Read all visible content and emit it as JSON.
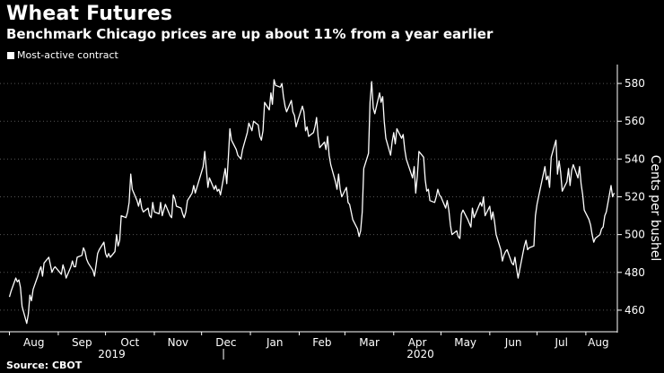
{
  "chart_data": {
    "type": "line",
    "title": "Wheat Futures",
    "subtitle": "Benchmark Chicago prices are up about 11% from a year earlier",
    "legend": [
      "Most-active contract"
    ],
    "ylabel": "Cents per bushel",
    "source": "Source: CBOT",
    "ylim": [
      450,
      590
    ],
    "yticks": [
      460,
      480,
      500,
      520,
      540,
      560,
      580
    ],
    "x_month_labels": [
      "Aug",
      "Sep",
      "Oct",
      "Nov",
      "Dec",
      "Jan",
      "Feb",
      "Mar",
      "Apr",
      "May",
      "Jun",
      "Jul",
      "Aug"
    ],
    "x_year_labels": [
      "2019",
      "2020"
    ],
    "grid": "horizontal dotted",
    "colors": {
      "background": "#000000",
      "line": "#ffffff",
      "grid": "#555555"
    },
    "series": [
      {
        "name": "Most-active contract",
        "points": [
          [
            "2019-08-01",
            467
          ],
          [
            "2019-08-02",
            470
          ],
          [
            "2019-08-05",
            477
          ],
          [
            "2019-08-06",
            475
          ],
          [
            "2019-08-07",
            476
          ],
          [
            "2019-08-08",
            472
          ],
          [
            "2019-08-09",
            462
          ],
          [
            "2019-08-12",
            453
          ],
          [
            "2019-08-13",
            458
          ],
          [
            "2019-08-14",
            468
          ],
          [
            "2019-08-15",
            465
          ],
          [
            "2019-08-16",
            471
          ],
          [
            "2019-08-19",
            478
          ],
          [
            "2019-08-20",
            481
          ],
          [
            "2019-08-21",
            483
          ],
          [
            "2019-08-22",
            478
          ],
          [
            "2019-08-23",
            485
          ],
          [
            "2019-08-26",
            488
          ],
          [
            "2019-08-27",
            484
          ],
          [
            "2019-08-28",
            480
          ],
          [
            "2019-08-29",
            482
          ],
          [
            "2019-08-30",
            483
          ],
          [
            "2019-09-03",
            479
          ],
          [
            "2019-09-04",
            484
          ],
          [
            "2019-09-05",
            481
          ],
          [
            "2019-09-06",
            477
          ],
          [
            "2019-09-09",
            483
          ],
          [
            "2019-09-10",
            486
          ],
          [
            "2019-09-11",
            483
          ],
          [
            "2019-09-12",
            483
          ],
          [
            "2019-09-13",
            488
          ],
          [
            "2019-09-16",
            489
          ],
          [
            "2019-09-17",
            493
          ],
          [
            "2019-09-18",
            491
          ],
          [
            "2019-09-19",
            487
          ],
          [
            "2019-09-20",
            485
          ],
          [
            "2019-09-23",
            481
          ],
          [
            "2019-09-24",
            478
          ],
          [
            "2019-09-25",
            484
          ],
          [
            "2019-09-26",
            490
          ],
          [
            "2019-09-27",
            492
          ],
          [
            "2019-09-30",
            496
          ],
          [
            "2019-10-01",
            490
          ],
          [
            "2019-10-02",
            488
          ],
          [
            "2019-10-03",
            490
          ],
          [
            "2019-10-04",
            488
          ],
          [
            "2019-10-07",
            491
          ],
          [
            "2019-10-08",
            500
          ],
          [
            "2019-10-09",
            494
          ],
          [
            "2019-10-10",
            497
          ],
          [
            "2019-10-11",
            510
          ],
          [
            "2019-10-14",
            509
          ],
          [
            "2019-10-15",
            512
          ],
          [
            "2019-10-16",
            517
          ],
          [
            "2019-10-17",
            532
          ],
          [
            "2019-10-18",
            524
          ],
          [
            "2019-10-21",
            518
          ],
          [
            "2019-10-22",
            515
          ],
          [
            "2019-10-23",
            519
          ],
          [
            "2019-10-24",
            514
          ],
          [
            "2019-10-25",
            512
          ],
          [
            "2019-10-28",
            514
          ],
          [
            "2019-10-29",
            510
          ],
          [
            "2019-10-30",
            509
          ],
          [
            "2019-10-31",
            517
          ],
          [
            "2019-11-01",
            512
          ],
          [
            "2019-11-04",
            511
          ],
          [
            "2019-11-05",
            517
          ],
          [
            "2019-11-06",
            510
          ],
          [
            "2019-11-07",
            513
          ],
          [
            "2019-11-08",
            516
          ],
          [
            "2019-11-11",
            510
          ],
          [
            "2019-11-12",
            509
          ],
          [
            "2019-11-13",
            521
          ],
          [
            "2019-11-14",
            519
          ],
          [
            "2019-11-15",
            515
          ],
          [
            "2019-11-18",
            514
          ],
          [
            "2019-11-19",
            511
          ],
          [
            "2019-11-20",
            509
          ],
          [
            "2019-11-21",
            512
          ],
          [
            "2019-11-22",
            518
          ],
          [
            "2019-11-25",
            522
          ],
          [
            "2019-11-26",
            526
          ],
          [
            "2019-11-27",
            522
          ],
          [
            "2019-12-02",
            536
          ],
          [
            "2019-12-03",
            544
          ],
          [
            "2019-12-04",
            535
          ],
          [
            "2019-12-05",
            525
          ],
          [
            "2019-12-06",
            530
          ],
          [
            "2019-12-09",
            524
          ],
          [
            "2019-12-10",
            526
          ],
          [
            "2019-12-11",
            523
          ],
          [
            "2019-12-12",
            524
          ],
          [
            "2019-12-13",
            521
          ],
          [
            "2019-12-16",
            535
          ],
          [
            "2019-12-17",
            527
          ],
          [
            "2019-12-18",
            541
          ],
          [
            "2019-12-19",
            556
          ],
          [
            "2019-12-20",
            550
          ],
          [
            "2019-12-23",
            545
          ],
          [
            "2019-12-24",
            542
          ],
          [
            "2019-12-26",
            540
          ],
          [
            "2019-12-27",
            545
          ],
          [
            "2019-12-30",
            554
          ],
          [
            "2019-12-31",
            559
          ],
          [
            "2020-01-02",
            555
          ],
          [
            "2020-01-03",
            560
          ],
          [
            "2020-01-06",
            558
          ],
          [
            "2020-01-07",
            552
          ],
          [
            "2020-01-08",
            550
          ],
          [
            "2020-01-09",
            555
          ],
          [
            "2020-01-10",
            570
          ],
          [
            "2020-01-13",
            566
          ],
          [
            "2020-01-14",
            575
          ],
          [
            "2020-01-15",
            569
          ],
          [
            "2020-01-16",
            582
          ],
          [
            "2020-01-17",
            579
          ],
          [
            "2020-01-20",
            578
          ],
          [
            "2020-01-21",
            580
          ],
          [
            "2020-01-22",
            573
          ],
          [
            "2020-01-23",
            568
          ],
          [
            "2020-01-24",
            565
          ],
          [
            "2020-01-27",
            571
          ],
          [
            "2020-01-28",
            565
          ],
          [
            "2020-01-29",
            563
          ],
          [
            "2020-01-30",
            557
          ],
          [
            "2020-01-31",
            560
          ],
          [
            "2020-02-03",
            568
          ],
          [
            "2020-02-04",
            565
          ],
          [
            "2020-02-05",
            555
          ],
          [
            "2020-02-06",
            557
          ],
          [
            "2020-02-07",
            552
          ],
          [
            "2020-02-10",
            554
          ],
          [
            "2020-02-11",
            557
          ],
          [
            "2020-02-12",
            562
          ],
          [
            "2020-02-13",
            552
          ],
          [
            "2020-02-14",
            546
          ],
          [
            "2020-02-17",
            549
          ],
          [
            "2020-02-18",
            545
          ],
          [
            "2020-02-19",
            552
          ],
          [
            "2020-02-20",
            542
          ],
          [
            "2020-02-21",
            537
          ],
          [
            "2020-02-24",
            528
          ],
          [
            "2020-02-25",
            524
          ],
          [
            "2020-02-26",
            532
          ],
          [
            "2020-02-27",
            524
          ],
          [
            "2020-02-28",
            520
          ],
          [
            "2020-03-02",
            525
          ],
          [
            "2020-03-03",
            517
          ],
          [
            "2020-03-04",
            516
          ],
          [
            "2020-03-05",
            512
          ],
          [
            "2020-03-06",
            508
          ],
          [
            "2020-03-09",
            503
          ],
          [
            "2020-03-10",
            499
          ],
          [
            "2020-03-11",
            502
          ],
          [
            "2020-03-12",
            512
          ],
          [
            "2020-03-13",
            535
          ],
          [
            "2020-03-16",
            543
          ],
          [
            "2020-03-17",
            570
          ],
          [
            "2020-03-18",
            581
          ],
          [
            "2020-03-19",
            567
          ],
          [
            "2020-03-20",
            564
          ],
          [
            "2020-03-23",
            575
          ],
          [
            "2020-03-24",
            570
          ],
          [
            "2020-03-25",
            573
          ],
          [
            "2020-03-26",
            560
          ],
          [
            "2020-03-27",
            551
          ],
          [
            "2020-03-30",
            542
          ],
          [
            "2020-03-31",
            549
          ],
          [
            "2020-04-01",
            554
          ],
          [
            "2020-04-02",
            548
          ],
          [
            "2020-04-03",
            556
          ],
          [
            "2020-04-06",
            551
          ],
          [
            "2020-04-07",
            553
          ],
          [
            "2020-04-08",
            545
          ],
          [
            "2020-04-09",
            540
          ],
          [
            "2020-04-13",
            530
          ],
          [
            "2020-04-14",
            536
          ],
          [
            "2020-04-15",
            522
          ],
          [
            "2020-04-16",
            531
          ],
          [
            "2020-04-17",
            544
          ],
          [
            "2020-04-20",
            541
          ],
          [
            "2020-04-21",
            529
          ],
          [
            "2020-04-22",
            523
          ],
          [
            "2020-04-23",
            524
          ],
          [
            "2020-04-24",
            518
          ],
          [
            "2020-04-27",
            517
          ],
          [
            "2020-04-28",
            520
          ],
          [
            "2020-04-29",
            524
          ],
          [
            "2020-04-30",
            521
          ],
          [
            "2020-05-01",
            520
          ],
          [
            "2020-05-04",
            514
          ],
          [
            "2020-05-05",
            518
          ],
          [
            "2020-05-06",
            513
          ],
          [
            "2020-05-07",
            505
          ],
          [
            "2020-05-08",
            500
          ],
          [
            "2020-05-11",
            502
          ],
          [
            "2020-05-12",
            499
          ],
          [
            "2020-05-13",
            498
          ],
          [
            "2020-05-14",
            511
          ],
          [
            "2020-05-15",
            513
          ],
          [
            "2020-05-18",
            508
          ],
          [
            "2020-05-19",
            506
          ],
          [
            "2020-05-20",
            504
          ],
          [
            "2020-05-21",
            514
          ],
          [
            "2020-05-22",
            509
          ],
          [
            "2020-05-26",
            517
          ],
          [
            "2020-05-27",
            515
          ],
          [
            "2020-05-28",
            520
          ],
          [
            "2020-05-29",
            510
          ],
          [
            "2020-06-01",
            515
          ],
          [
            "2020-06-02",
            508
          ],
          [
            "2020-06-03",
            512
          ],
          [
            "2020-06-04",
            507
          ],
          [
            "2020-06-05",
            500
          ],
          [
            "2020-06-08",
            492
          ],
          [
            "2020-06-09",
            486
          ],
          [
            "2020-06-10",
            489
          ],
          [
            "2020-06-11",
            491
          ],
          [
            "2020-06-12",
            492
          ],
          [
            "2020-06-15",
            485
          ],
          [
            "2020-06-16",
            484
          ],
          [
            "2020-06-17",
            488
          ],
          [
            "2020-06-18",
            482
          ],
          [
            "2020-06-19",
            477
          ],
          [
            "2020-06-22",
            490
          ],
          [
            "2020-06-23",
            494
          ],
          [
            "2020-06-24",
            497
          ],
          [
            "2020-06-25",
            492
          ],
          [
            "2020-06-26",
            493
          ],
          [
            "2020-06-29",
            494
          ],
          [
            "2020-06-30",
            510
          ],
          [
            "2020-07-01",
            516
          ],
          [
            "2020-07-02",
            520
          ],
          [
            "2020-07-06",
            536
          ],
          [
            "2020-07-07",
            529
          ],
          [
            "2020-07-08",
            531
          ],
          [
            "2020-07-09",
            525
          ],
          [
            "2020-07-10",
            541
          ],
          [
            "2020-07-13",
            550
          ],
          [
            "2020-07-14",
            532
          ],
          [
            "2020-07-15",
            539
          ],
          [
            "2020-07-16",
            533
          ],
          [
            "2020-07-17",
            523
          ],
          [
            "2020-07-20",
            528
          ],
          [
            "2020-07-21",
            535
          ],
          [
            "2020-07-22",
            526
          ],
          [
            "2020-07-23",
            534
          ],
          [
            "2020-07-24",
            537
          ],
          [
            "2020-07-27",
            530
          ],
          [
            "2020-07-28",
            536
          ],
          [
            "2020-07-29",
            527
          ],
          [
            "2020-07-30",
            521
          ],
          [
            "2020-07-31",
            513
          ],
          [
            "2020-08-03",
            508
          ],
          [
            "2020-08-04",
            505
          ],
          [
            "2020-08-05",
            500
          ],
          [
            "2020-08-06",
            496
          ],
          [
            "2020-08-07",
            498
          ],
          [
            "2020-08-10",
            500
          ],
          [
            "2020-08-11",
            503
          ],
          [
            "2020-08-12",
            504
          ],
          [
            "2020-08-13",
            510
          ],
          [
            "2020-08-14",
            512
          ],
          [
            "2020-08-17",
            526
          ],
          [
            "2020-08-18",
            520
          ],
          [
            "2020-08-19",
            522
          ]
        ]
      }
    ]
  }
}
